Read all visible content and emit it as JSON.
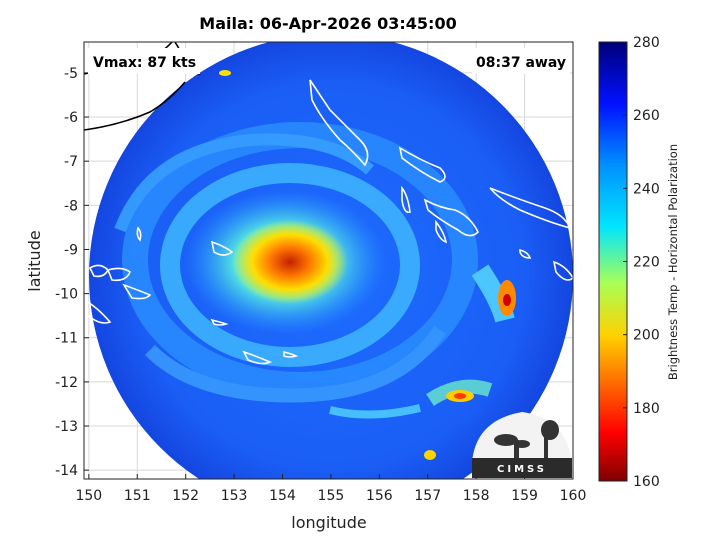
{
  "title": "Maila: 06-Apr-2026 03:45:00",
  "vmax_label": "Vmax: 87 kts",
  "time_label": "08:37 away",
  "logo_text": "CIMSS",
  "map": {
    "xlabel": "longitude",
    "ylabel": "latitude",
    "lon_range": [
      149.9,
      160.0
    ],
    "lat_range": [
      -14.2,
      -4.3
    ],
    "lon_ticks": [
      "150",
      "151",
      "152",
      "153",
      "154",
      "155",
      "156",
      "157",
      "158",
      "159",
      "160"
    ],
    "lat_ticks": [
      "-5",
      "-6",
      "-7",
      "-8",
      "-9",
      "-10",
      "-11",
      "-12",
      "-13",
      "-14"
    ],
    "grid": true,
    "swath_center": {
      "lon": 154.8,
      "lat": -9.2
    },
    "storm_center": {
      "lon": 154.2,
      "lat": -9.4
    },
    "coastline_color": "#ffffff",
    "background_color": "#ffffff"
  },
  "colorbar": {
    "label": "Brightness Temp - Horizontal Polarization",
    "min": 160,
    "max": 280,
    "ticks": [
      "160",
      "180",
      "200",
      "220",
      "240",
      "260",
      "280"
    ],
    "colormap": [
      "#7f0000",
      "#ff0000",
      "#ff8000",
      "#ffff00",
      "#80ff80",
      "#00ffff",
      "#0080ff",
      "#0000ff",
      "#00007f"
    ]
  }
}
